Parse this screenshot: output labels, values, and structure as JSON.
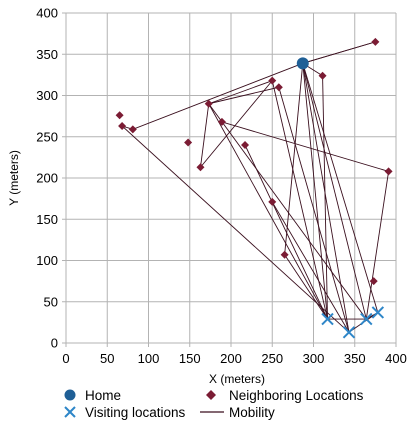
{
  "chart_data": {
    "type": "scatter",
    "title": "",
    "xlabel": "X (meters)",
    "ylabel": "Y (meters)",
    "xlim": [
      0,
      400
    ],
    "ylim": [
      0,
      400
    ],
    "xticks": [
      "0",
      "50",
      "100",
      "150",
      "200",
      "250",
      "300",
      "350",
      "400"
    ],
    "yticks": [
      "0",
      "50",
      "100",
      "150",
      "200",
      "250",
      "300",
      "350",
      "400"
    ],
    "grid": true,
    "legend_position": "bottom",
    "series": [
      {
        "name": "Home",
        "marker": "circle",
        "color": "#1f5f96",
        "points": [
          [
            287,
            339
          ]
        ]
      },
      {
        "name": "Neighboring Locations",
        "marker": "diamond",
        "color": "#7b1c34",
        "points": [
          [
            65,
            276
          ],
          [
            68,
            263
          ],
          [
            81,
            259
          ],
          [
            148,
            243
          ],
          [
            163,
            213
          ],
          [
            173,
            290
          ],
          [
            189,
            268
          ],
          [
            217,
            240
          ],
          [
            250,
            318
          ],
          [
            258,
            310
          ],
          [
            250,
            171
          ],
          [
            265,
            107
          ],
          [
            311,
            324
          ],
          [
            375,
            365
          ],
          [
            391,
            208
          ],
          [
            373,
            75
          ]
        ]
      },
      {
        "name": "Visiting locations",
        "marker": "x",
        "color": "#2e86c8",
        "points": [
          [
            317,
            29
          ],
          [
            343,
            13
          ],
          [
            364,
            29
          ],
          [
            378,
            37
          ]
        ]
      },
      {
        "name": "Mobility",
        "marker": "line",
        "color": "#3a0f1e",
        "segments": [
          [
            [
              287,
              339
            ],
            [
              375,
              365
            ]
          ],
          [
            [
              375,
              365
            ],
            [
              287,
              339
            ]
          ],
          [
            [
              287,
              339
            ],
            [
              317,
              29
            ]
          ],
          [
            [
              287,
              339
            ],
            [
              343,
              13
            ]
          ],
          [
            [
              287,
              339
            ],
            [
              364,
              29
            ]
          ],
          [
            [
              287,
              339
            ],
            [
              378,
              37
            ]
          ],
          [
            [
              287,
              339
            ],
            [
              311,
              324
            ]
          ],
          [
            [
              311,
              324
            ],
            [
              317,
              29
            ]
          ],
          [
            [
              287,
              339
            ],
            [
              81,
              259
            ]
          ],
          [
            [
              81,
              259
            ],
            [
              68,
              263
            ]
          ],
          [
            [
              68,
              263
            ],
            [
              343,
              13
            ]
          ],
          [
            [
              173,
              290
            ],
            [
              250,
              318
            ]
          ],
          [
            [
              173,
              290
            ],
            [
              258,
              310
            ]
          ],
          [
            [
              173,
              290
            ],
            [
              163,
              213
            ]
          ],
          [
            [
              163,
              213
            ],
            [
              250,
              318
            ]
          ],
          [
            [
              173,
              290
            ],
            [
              317,
              29
            ]
          ],
          [
            [
              173,
              290
            ],
            [
              364,
              29
            ]
          ],
          [
            [
              258,
              310
            ],
            [
              343,
              13
            ]
          ],
          [
            [
              250,
              318
            ],
            [
              317,
              29
            ]
          ],
          [
            [
              189,
              268
            ],
            [
              391,
              208
            ]
          ],
          [
            [
              391,
              208
            ],
            [
              364,
              29
            ]
          ],
          [
            [
              217,
              240
            ],
            [
              317,
              29
            ]
          ],
          [
            [
              250,
              171
            ],
            [
              343,
              13
            ]
          ],
          [
            [
              287,
              339
            ],
            [
              265,
              107
            ]
          ],
          [
            [
              265,
              107
            ],
            [
              317,
              29
            ]
          ],
          [
            [
              317,
              29
            ],
            [
              364,
              29
            ]
          ],
          [
            [
              343,
              13
            ],
            [
              378,
              37
            ]
          ],
          [
            [
              364,
              29
            ],
            [
              378,
              37
            ]
          ]
        ]
      }
    ]
  },
  "legend": {
    "home": "Home",
    "neighbors": "Neighboring Locations",
    "visiting": "Visiting locations",
    "mobility": "Mobility"
  }
}
